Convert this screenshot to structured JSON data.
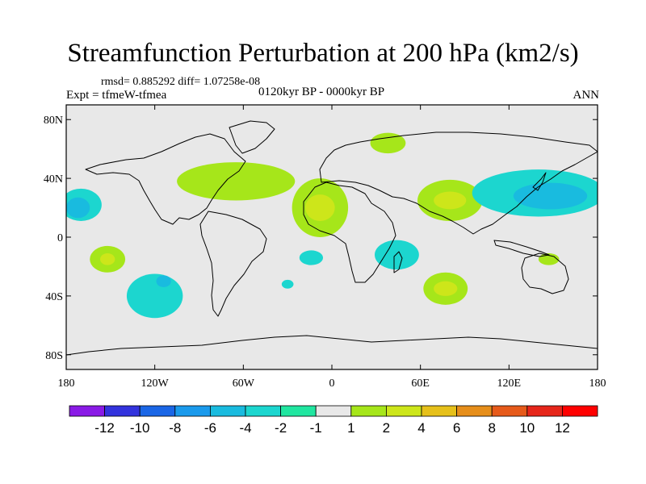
{
  "title": "Streamfunction Perturbation at 200 hPa (km2/s)",
  "stats_line": "rmsd= 0.885292 diff= 1.07258e-08",
  "experiment": "Expt = tfmeW-tfmea",
  "period": "0120kyr BP - 0000kyr BP",
  "season": "ANN",
  "colors": {
    "background_field": "#e8e8e8",
    "coastline": "#000000"
  },
  "chart_data": {
    "type": "heatmap",
    "projection": "cylindrical-equidistant",
    "variable": "Streamfunction Perturbation at 200 hPa",
    "units": "km2/s",
    "xlim": [
      -180,
      180
    ],
    "ylim": [
      -90,
      90
    ],
    "x_ticks": [
      {
        "value": -180,
        "label": "180"
      },
      {
        "value": -120,
        "label": "120W"
      },
      {
        "value": -60,
        "label": "60W"
      },
      {
        "value": 0,
        "label": "0"
      },
      {
        "value": 60,
        "label": "60E"
      },
      {
        "value": 120,
        "label": "120E"
      },
      {
        "value": 180,
        "label": "180"
      }
    ],
    "y_ticks": [
      {
        "value": 80,
        "label": "80N"
      },
      {
        "value": 40,
        "label": "40N"
      },
      {
        "value": 0,
        "label": "0"
      },
      {
        "value": -40,
        "label": "40S"
      },
      {
        "value": -80,
        "label": "80S"
      }
    ],
    "contour_levels": [
      -12,
      -10,
      -8,
      -6,
      -4,
      -2,
      -1,
      1,
      2,
      4,
      6,
      8,
      10,
      12
    ],
    "colorbar_colors": [
      "#8a1ae6",
      "#3333dd",
      "#1a66e6",
      "#1a9aec",
      "#19bbdf",
      "#1cd6cf",
      "#20e6a0",
      "#e8e8e8",
      "#a6e61a",
      "#cde61a",
      "#e6c01a",
      "#e68e1a",
      "#e65a1a",
      "#e6261a",
      "#ff0000"
    ],
    "anomaly_regions": [
      {
        "name": "north-pacific-east",
        "lon": -170,
        "lat": 22,
        "rx": 14,
        "ry": 11,
        "level": -2
      },
      {
        "name": "north-pacific-east-core",
        "lon": -172,
        "lat": 20,
        "rx": 8,
        "ry": 7,
        "level": -4
      },
      {
        "name": "south-pacific-west",
        "lon": -152,
        "lat": -15,
        "rx": 12,
        "ry": 9,
        "level": 2
      },
      {
        "name": "south-pacific-west-core",
        "lon": -152,
        "lat": -15,
        "rx": 5,
        "ry": 4,
        "level": 4
      },
      {
        "name": "south-pacific-east",
        "lon": -120,
        "lat": -40,
        "rx": 19,
        "ry": 15,
        "level": -2
      },
      {
        "name": "south-pacific-east-core",
        "lon": -114,
        "lat": -30,
        "rx": 5,
        "ry": 4,
        "level": -4
      },
      {
        "name": "north-america-atlantic",
        "lon": -65,
        "lat": 38,
        "rx": 40,
        "ry": 13,
        "level": 2
      },
      {
        "name": "tropical-atlantic-africa",
        "lon": -8,
        "lat": 20,
        "rx": 19,
        "ry": 20,
        "level": 2
      },
      {
        "name": "tropical-atlantic-africa-core",
        "lon": -8,
        "lat": 20,
        "rx": 10,
        "ry": 9,
        "level": 4
      },
      {
        "name": "south-atlantic",
        "lon": -14,
        "lat": -14,
        "rx": 8,
        "ry": 5,
        "level": -2
      },
      {
        "name": "central-south-atlantic",
        "lon": -30,
        "lat": -32,
        "rx": 4,
        "ry": 3,
        "level": -2
      },
      {
        "name": "eastern-europe",
        "lon": 38,
        "lat": 64,
        "rx": 12,
        "ry": 7,
        "level": 2
      },
      {
        "name": "south-asia",
        "lon": 80,
        "lat": 25,
        "rx": 22,
        "ry": 14,
        "level": 2
      },
      {
        "name": "south-asia-core",
        "lon": 80,
        "lat": 25,
        "rx": 11,
        "ry": 6,
        "level": 4
      },
      {
        "name": "east-africa-madagascar",
        "lon": 44,
        "lat": -12,
        "rx": 15,
        "ry": 10,
        "level": -2
      },
      {
        "name": "southern-indian-ocean",
        "lon": 77,
        "lat": -35,
        "rx": 15,
        "ry": 11,
        "level": 2
      },
      {
        "name": "southern-indian-ocean-core",
        "lon": 77,
        "lat": -35,
        "rx": 8,
        "ry": 5,
        "level": 4
      },
      {
        "name": "northwest-pacific",
        "lon": 140,
        "lat": 30,
        "rx": 45,
        "ry": 16,
        "level": -2
      },
      {
        "name": "northwest-pacific-core",
        "lon": 148,
        "lat": 28,
        "rx": 25,
        "ry": 9,
        "level": -4
      },
      {
        "name": "northern-australia",
        "lon": 147,
        "lat": -15,
        "rx": 7,
        "ry": 4,
        "level": 2
      }
    ]
  }
}
